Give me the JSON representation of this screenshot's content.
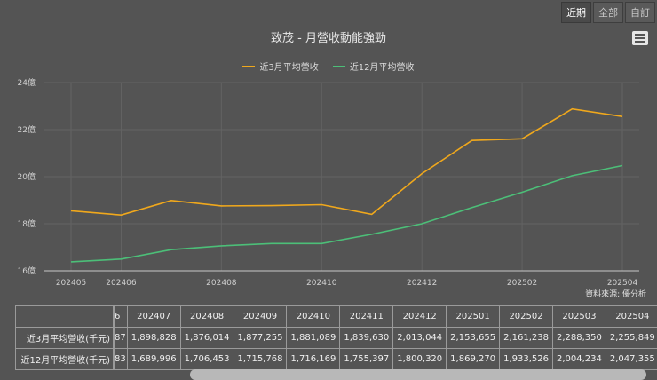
{
  "range_buttons": [
    {
      "label": "近期",
      "active": true
    },
    {
      "label": "全部",
      "active": false
    },
    {
      "label": "自訂",
      "active": false
    }
  ],
  "menu_icon": "hamburger-menu-icon",
  "source_label": "資料來源: 優分析",
  "colors": {
    "series_3m": "#f0a81c",
    "series_12m": "#4cbf78",
    "background": "#545454",
    "grid": "#666666"
  },
  "chart_data": {
    "type": "line",
    "title": "致茂 - 月營收動能強勁",
    "xlabel": "",
    "ylabel": "",
    "ylim": [
      16,
      24
    ],
    "y_unit": "億",
    "y_ticks": [
      "16億",
      "18億",
      "20億",
      "22億",
      "24億"
    ],
    "x": [
      "202405",
      "202406",
      "202407",
      "202408",
      "202409",
      "202410",
      "202411",
      "202412",
      "202501",
      "202502",
      "202503",
      "202504"
    ],
    "x_tick_labels": [
      "202405",
      "202406",
      "202408",
      "202410",
      "202412",
      "202502",
      "202504"
    ],
    "grid": true,
    "legend_position": "top",
    "series": [
      {
        "name": "近3月平均營收",
        "color": "#f0a81c",
        "values": [
          18.55,
          18.37,
          18.99,
          18.76,
          18.77,
          18.81,
          18.4,
          20.13,
          21.54,
          21.61,
          22.88,
          22.56
        ]
      },
      {
        "name": "近12月平均營收",
        "color": "#4cbf78",
        "values": [
          16.38,
          16.5,
          16.9,
          17.06,
          17.16,
          17.16,
          17.55,
          18.0,
          18.69,
          19.34,
          20.04,
          20.47
        ]
      }
    ]
  },
  "table": {
    "row_labels": [
      "近3月平均營收(千元)",
      "近12月平均營收(千元)"
    ],
    "partial_col": {
      "header": "6",
      "values": [
        "87",
        "83"
      ]
    },
    "columns": [
      "202407",
      "202408",
      "202409",
      "202410",
      "202411",
      "202412",
      "202501",
      "202502",
      "202503",
      "202504"
    ],
    "rows": [
      [
        "1,898,828",
        "1,876,014",
        "1,877,255",
        "1,881,089",
        "1,839,630",
        "2,013,044",
        "2,153,655",
        "2,161,238",
        "2,288,350",
        "2,255,849"
      ],
      [
        "1,689,996",
        "1,706,453",
        "1,715,768",
        "1,716,169",
        "1,755,397",
        "1,800,320",
        "1,869,270",
        "1,933,526",
        "2,004,234",
        "2,047,355"
      ]
    ]
  }
}
